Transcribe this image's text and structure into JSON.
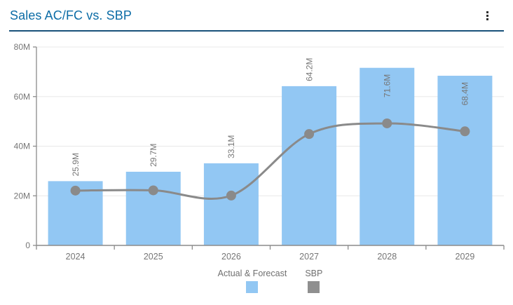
{
  "header": {
    "title": "Sales AC/FC vs. SBP",
    "menu_icon": "kebab-menu-icon"
  },
  "colors": {
    "title_blue": "#0c6ca6",
    "divider_navy": "#19517a",
    "bar_blue": "#92c7f3",
    "sbp_gray": "#8a8a8a",
    "legend_sbp_swatch": "#8f8f8f",
    "grid_gray": "#e8e8e8",
    "axis_gray": "#8c8c8c",
    "label_gray": "#767676"
  },
  "chart_data": {
    "type": "combo (bar + line)",
    "title": "Sales AC/FC vs. SBP",
    "categories": [
      "2024",
      "2025",
      "2026",
      "2027",
      "2028",
      "2029"
    ],
    "series": [
      {
        "name": "Actual & Forecast",
        "type": "bar",
        "values_millions": [
          25.9,
          29.7,
          33.1,
          64.2,
          71.6,
          68.4
        ],
        "data_labels": [
          "25.9M",
          "29.7M",
          "33.1M",
          "64.2M",
          "71.6M",
          "68.4M"
        ],
        "color": "#92c7f3"
      },
      {
        "name": "SBP",
        "type": "line",
        "values_millions": [
          22.1,
          22.2,
          20.1,
          44.9,
          49.2,
          46.0
        ],
        "color": "#8a8a8a",
        "markers": "circle"
      }
    ],
    "xlabel": "",
    "ylabel": "",
    "ylim_millions": [
      0,
      80
    ],
    "y_tick_labels": [
      "0",
      "20M",
      "40M",
      "60M",
      "80M"
    ],
    "grid": "horizontal only",
    "legend_position": "bottom-center"
  },
  "legend": {
    "items": [
      {
        "label": "Actual & Forecast",
        "color": "#92c7f3"
      },
      {
        "label": "SBP",
        "color": "#8f8f8f"
      }
    ]
  }
}
